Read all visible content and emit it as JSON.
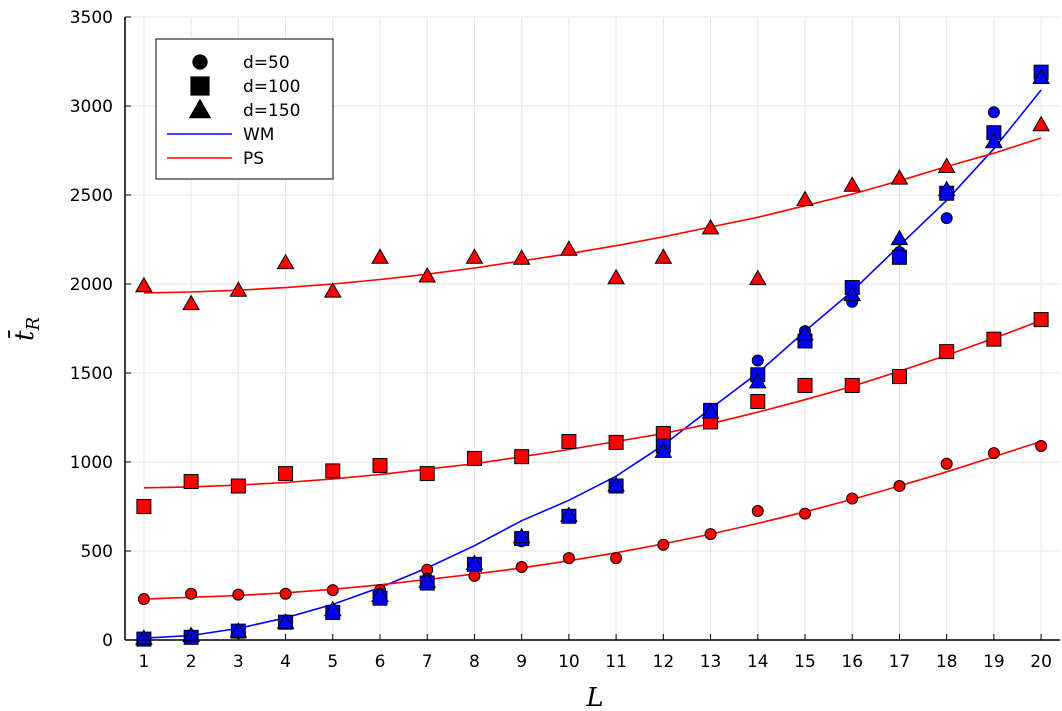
{
  "chart_data": {
    "type": "scatter",
    "xlabel": "L",
    "ylabel": "t̄",
    "ylabel_subscript": "R",
    "xlim": [
      0.6,
      20.4
    ],
    "ylim": [
      0,
      3500
    ],
    "xticks": [
      1,
      2,
      3,
      4,
      5,
      6,
      7,
      8,
      9,
      10,
      11,
      12,
      13,
      14,
      15,
      16,
      17,
      18,
      19,
      20
    ],
    "yticks": [
      0,
      500,
      1000,
      1500,
      2000,
      2500,
      3000,
      3500
    ],
    "grid": true,
    "legend_position": "top-left",
    "legend": [
      {
        "label": "d=50",
        "marker": "circle"
      },
      {
        "label": "d=100",
        "marker": "square"
      },
      {
        "label": "d=150",
        "marker": "triangle"
      },
      {
        "label": "WM",
        "line_color": "#0000ff"
      },
      {
        "label": "PS",
        "line_color": "#ff0000"
      }
    ],
    "series": [
      {
        "method": "PS",
        "marker": "triangle",
        "color": "#ff0000",
        "d": 150,
        "x": [
          1,
          2,
          3,
          4,
          5,
          6,
          7,
          8,
          9,
          10,
          11,
          12,
          13,
          14,
          15,
          16,
          17,
          18,
          19,
          20
        ],
        "y": [
          1990,
          1890,
          1965,
          2120,
          1960,
          2150,
          2045,
          2150,
          2145,
          2195,
          2035,
          2150,
          2315,
          2030,
          2475,
          2555,
          2595,
          2660,
          2800,
          2895
        ]
      },
      {
        "method": "PS",
        "marker": "square",
        "color": "#ff0000",
        "d": 100,
        "x": [
          1,
          2,
          3,
          4,
          5,
          6,
          7,
          8,
          9,
          10,
          11,
          12,
          13,
          14,
          15,
          16,
          17,
          18,
          19,
          20
        ],
        "y": [
          750,
          890,
          865,
          935,
          950,
          980,
          935,
          1020,
          1030,
          1115,
          1110,
          1160,
          1225,
          1340,
          1430,
          1430,
          1480,
          1620,
          1690,
          1800
        ]
      },
      {
        "method": "PS",
        "marker": "circle",
        "color": "#ff0000",
        "d": 50,
        "x": [
          1,
          2,
          3,
          4,
          5,
          6,
          7,
          8,
          9,
          10,
          11,
          12,
          13,
          14,
          15,
          16,
          17,
          18,
          19,
          20
        ],
        "y": [
          230,
          260,
          255,
          260,
          280,
          280,
          395,
          360,
          410,
          460,
          460,
          535,
          595,
          725,
          710,
          795,
          865,
          990,
          1050,
          1090
        ]
      },
      {
        "method": "WM",
        "marker": "circle",
        "color": "#0000ff",
        "d": 50,
        "x": [
          1,
          2,
          3,
          4,
          5,
          6,
          7,
          8,
          9,
          10,
          11,
          12,
          13,
          14,
          15,
          16,
          17,
          18,
          19,
          20
        ],
        "y": [
          10,
          20,
          40,
          110,
          170,
          260,
          345,
          435,
          555,
          700,
          870,
          1080,
          1285,
          1570,
          1735,
          1900,
          2180,
          2370,
          2965,
          3180
        ]
      },
      {
        "method": "WM",
        "marker": "square",
        "color": "#0000ff",
        "d": 100,
        "x": [
          1,
          2,
          3,
          4,
          5,
          6,
          7,
          8,
          9,
          10,
          11,
          12,
          13,
          14,
          15,
          16,
          17,
          18,
          19,
          20
        ],
        "y": [
          5,
          15,
          50,
          100,
          155,
          235,
          320,
          425,
          570,
          695,
          865,
          1090,
          1290,
          1490,
          1680,
          1980,
          2150,
          2510,
          2850,
          3190
        ]
      },
      {
        "method": "WM",
        "marker": "triangle",
        "color": "#0000ff",
        "d": 150,
        "x": [
          1,
          2,
          3,
          4,
          5,
          6,
          7,
          8,
          9,
          10,
          11,
          12,
          13,
          14,
          15,
          16,
          17,
          18,
          19,
          20
        ],
        "y": [
          10,
          25,
          50,
          100,
          170,
          250,
          330,
          430,
          580,
          700,
          870,
          1060,
          1280,
          1450,
          1720,
          1940,
          2255,
          2530,
          2800,
          3160
        ]
      }
    ],
    "fit_lines": [
      {
        "name": "WM",
        "color": "#0000ff",
        "x": [
          1,
          2,
          3,
          4,
          5,
          6,
          7,
          8,
          9,
          10,
          11,
          12,
          13,
          14,
          15,
          16,
          17,
          18,
          19,
          20
        ],
        "y": [
          10,
          25,
          65,
          125,
          200,
          295,
          405,
          530,
          670,
          785,
          920,
          1095,
          1300,
          1500,
          1735,
          1960,
          2215,
          2470,
          2760,
          3090
        ]
      },
      {
        "name": "PS-150",
        "color": "#ff0000",
        "x": [
          1,
          2,
          3,
          4,
          5,
          6,
          7,
          8,
          9,
          10,
          11,
          12,
          13,
          14,
          15,
          16,
          17,
          18,
          19,
          20
        ],
        "y": [
          1950,
          1955,
          1965,
          1980,
          2000,
          2025,
          2055,
          2090,
          2130,
          2170,
          2215,
          2265,
          2320,
          2375,
          2440,
          2505,
          2580,
          2660,
          2735,
          2820
        ]
      },
      {
        "name": "PS-100",
        "color": "#ff0000",
        "x": [
          1,
          2,
          3,
          4,
          5,
          6,
          7,
          8,
          9,
          10,
          11,
          12,
          13,
          14,
          15,
          16,
          17,
          18,
          19,
          20
        ],
        "y": [
          855,
          860,
          870,
          885,
          905,
          930,
          960,
          990,
          1030,
          1070,
          1115,
          1160,
          1215,
          1280,
          1350,
          1425,
          1510,
          1600,
          1695,
          1795
        ]
      },
      {
        "name": "PS-50",
        "color": "#ff0000",
        "x": [
          1,
          2,
          3,
          4,
          5,
          6,
          7,
          8,
          9,
          10,
          11,
          12,
          13,
          14,
          15,
          16,
          17,
          18,
          19,
          20
        ],
        "y": [
          230,
          240,
          250,
          265,
          285,
          310,
          340,
          370,
          405,
          445,
          490,
          540,
          595,
          655,
          720,
          790,
          865,
          945,
          1030,
          1115
        ]
      }
    ]
  }
}
